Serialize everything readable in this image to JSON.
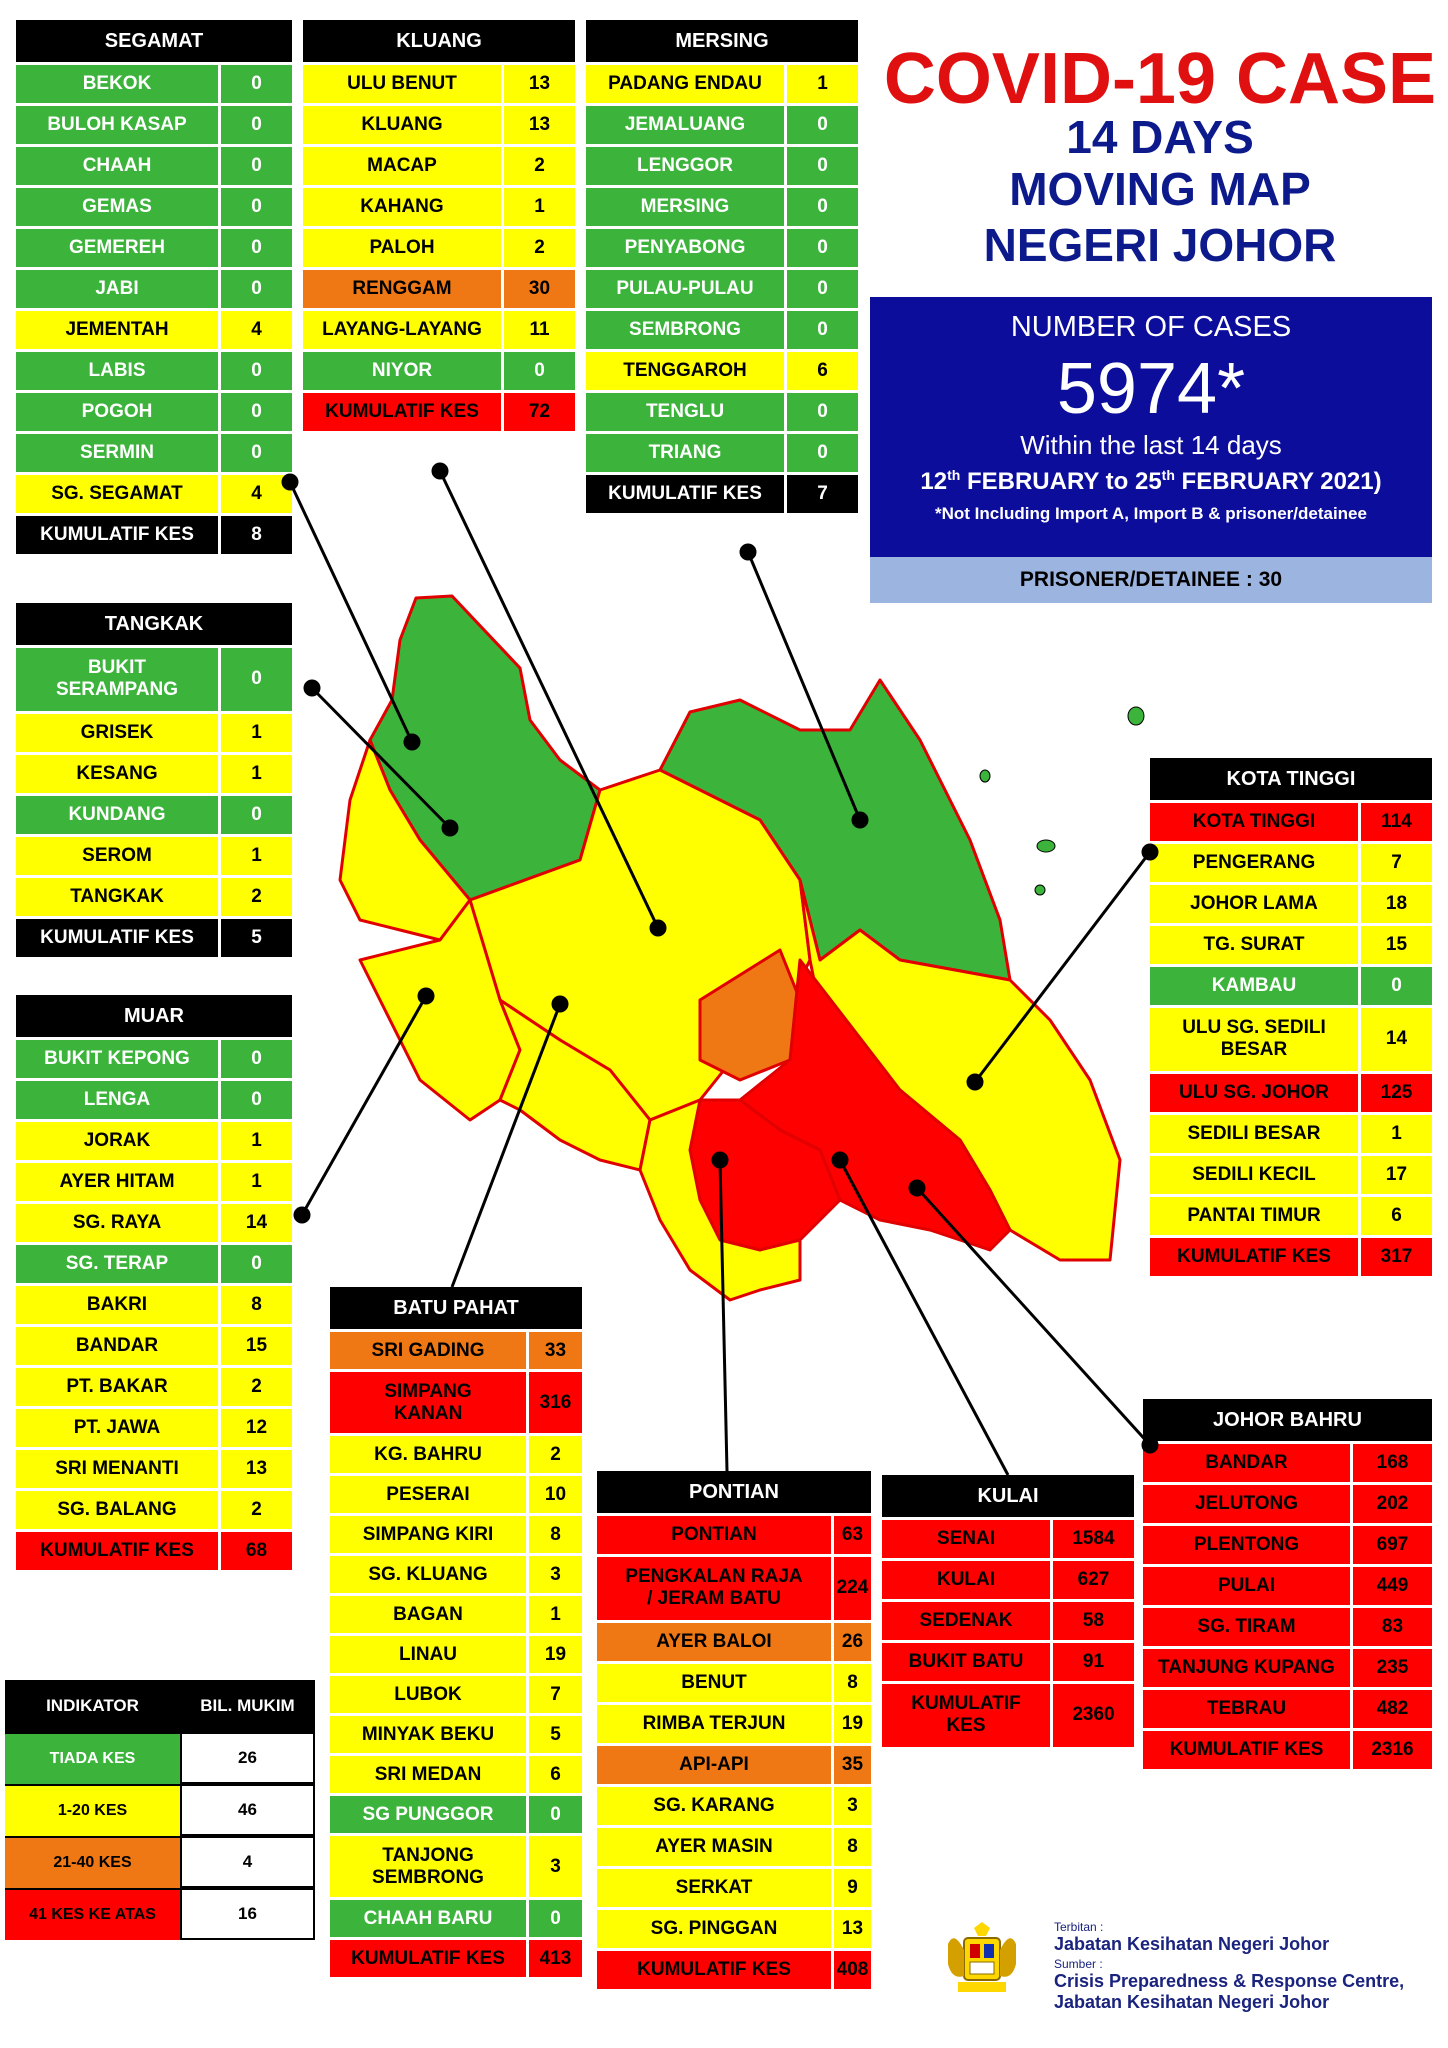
{
  "title": {
    "line1": "COVID-19 CASE",
    "line2": "14 DAYS",
    "line3": "MOVING MAP",
    "line4": "NEGERI JOHOR"
  },
  "summary": {
    "label": "NUMBER OF CASES",
    "total": "5974*",
    "within": "Within the last 14 days",
    "range_pre1": "12",
    "range_sup1": "th",
    "range_mid": " FEBRUARY to 25",
    "range_sup2": "th",
    "range_post": " FEBRUARY 2021)",
    "note": "*Not Including Import A, Import B & prisoner/detainee",
    "prisoner": "PRISONER/DETAINEE : 30"
  },
  "colors": {
    "green": "#3cb43c",
    "yellow": "#ffff00",
    "orange": "#f07814",
    "red": "#ff0000",
    "navy": "#0d0d9c",
    "title_red": "#e01010",
    "title_navy": "#0d1a8c"
  },
  "districts": {
    "segamat": {
      "name": "SEGAMAT",
      "rows": [
        {
          "n": "BEKOK",
          "v": "0",
          "c": "g"
        },
        {
          "n": "BULOH KASAP",
          "v": "0",
          "c": "g"
        },
        {
          "n": "CHAAH",
          "v": "0",
          "c": "g"
        },
        {
          "n": "GEMAS",
          "v": "0",
          "c": "g"
        },
        {
          "n": "GEMEREH",
          "v": "0",
          "c": "g"
        },
        {
          "n": "JABI",
          "v": "0",
          "c": "g"
        },
        {
          "n": "JEMENTAH",
          "v": "4",
          "c": "y"
        },
        {
          "n": "LABIS",
          "v": "0",
          "c": "g"
        },
        {
          "n": "POGOH",
          "v": "0",
          "c": "g"
        },
        {
          "n": "SERMIN",
          "v": "0",
          "c": "g"
        },
        {
          "n": "SG. SEGAMAT",
          "v": "4",
          "c": "y"
        },
        {
          "n": "KUMULATIF KES",
          "v": "8",
          "c": "k"
        }
      ]
    },
    "kluang": {
      "name": "KLUANG",
      "rows": [
        {
          "n": "ULU BENUT",
          "v": "13",
          "c": "y"
        },
        {
          "n": "KLUANG",
          "v": "13",
          "c": "y"
        },
        {
          "n": "MACAP",
          "v": "2",
          "c": "y"
        },
        {
          "n": "KAHANG",
          "v": "1",
          "c": "y"
        },
        {
          "n": "PALOH",
          "v": "2",
          "c": "y"
        },
        {
          "n": "RENGGAM",
          "v": "30",
          "c": "o"
        },
        {
          "n": "LAYANG-LAYANG",
          "v": "11",
          "c": "y"
        },
        {
          "n": "NIYOR",
          "v": "0",
          "c": "g"
        },
        {
          "n": "KUMULATIF KES",
          "v": "72",
          "c": "r"
        }
      ]
    },
    "mersing": {
      "name": "MERSING",
      "rows": [
        {
          "n": "PADANG ENDAU",
          "v": "1",
          "c": "y"
        },
        {
          "n": "JEMALUANG",
          "v": "0",
          "c": "g"
        },
        {
          "n": "LENGGOR",
          "v": "0",
          "c": "g"
        },
        {
          "n": "MERSING",
          "v": "0",
          "c": "g"
        },
        {
          "n": "PENYABONG",
          "v": "0",
          "c": "g"
        },
        {
          "n": "PULAU-PULAU",
          "v": "0",
          "c": "g"
        },
        {
          "n": "SEMBRONG",
          "v": "0",
          "c": "g"
        },
        {
          "n": "TENGGAROH",
          "v": "6",
          "c": "y"
        },
        {
          "n": "TENGLU",
          "v": "0",
          "c": "g"
        },
        {
          "n": "TRIANG",
          "v": "0",
          "c": "g"
        },
        {
          "n": "KUMULATIF KES",
          "v": "7",
          "c": "k"
        }
      ]
    },
    "tangkak": {
      "name": "TANGKAK",
      "rows": [
        {
          "n": "BUKIT\nSERAMPANG",
          "v": "0",
          "c": "g",
          "tall": true
        },
        {
          "n": "GRISEK",
          "v": "1",
          "c": "y"
        },
        {
          "n": "KESANG",
          "v": "1",
          "c": "y"
        },
        {
          "n": "KUNDANG",
          "v": "0",
          "c": "g"
        },
        {
          "n": "SEROM",
          "v": "1",
          "c": "y"
        },
        {
          "n": "TANGKAK",
          "v": "2",
          "c": "y"
        },
        {
          "n": "KUMULATIF KES",
          "v": "5",
          "c": "k"
        }
      ]
    },
    "muar": {
      "name": "MUAR",
      "rows": [
        {
          "n": "BUKIT KEPONG",
          "v": "0",
          "c": "g"
        },
        {
          "n": "LENGA",
          "v": "0",
          "c": "g"
        },
        {
          "n": "JORAK",
          "v": "1",
          "c": "y"
        },
        {
          "n": "AYER HITAM",
          "v": "1",
          "c": "y"
        },
        {
          "n": "SG. RAYA",
          "v": "14",
          "c": "y"
        },
        {
          "n": "SG. TERAP",
          "v": "0",
          "c": "g"
        },
        {
          "n": "BAKRI",
          "v": "8",
          "c": "y"
        },
        {
          "n": "BANDAR",
          "v": "15",
          "c": "y"
        },
        {
          "n": "PT. BAKAR",
          "v": "2",
          "c": "y"
        },
        {
          "n": "PT. JAWA",
          "v": "12",
          "c": "y"
        },
        {
          "n": "SRI MENANTI",
          "v": "13",
          "c": "y"
        },
        {
          "n": "SG. BALANG",
          "v": "2",
          "c": "y"
        },
        {
          "n": "KUMULATIF KES",
          "v": "68",
          "c": "r"
        }
      ]
    },
    "kota_tinggi": {
      "name": "KOTA TINGGI",
      "rows": [
        {
          "n": "KOTA TINGGI",
          "v": "114",
          "c": "r"
        },
        {
          "n": "PENGERANG",
          "v": "7",
          "c": "y"
        },
        {
          "n": "JOHOR LAMA",
          "v": "18",
          "c": "y"
        },
        {
          "n": "TG. SURAT",
          "v": "15",
          "c": "y"
        },
        {
          "n": "KAMBAU",
          "v": "0",
          "c": "g"
        },
        {
          "n": "ULU SG. SEDILI\nBESAR",
          "v": "14",
          "c": "y",
          "tall": true
        },
        {
          "n": "ULU  SG. JOHOR",
          "v": "125",
          "c": "r"
        },
        {
          "n": "SEDILI BESAR",
          "v": "1",
          "c": "y"
        },
        {
          "n": "SEDILI KECIL",
          "v": "17",
          "c": "y"
        },
        {
          "n": "PANTAI TIMUR",
          "v": "6",
          "c": "y"
        },
        {
          "n": "KUMULATIF KES",
          "v": "317",
          "c": "r"
        }
      ]
    },
    "batu_pahat": {
      "name": "BATU PAHAT",
      "rows": [
        {
          "n": "SRI GADING",
          "v": "33",
          "c": "o"
        },
        {
          "n": "SIMPANG\nKANAN",
          "v": "316",
          "c": "r",
          "tall": true
        },
        {
          "n": "KG. BAHRU",
          "v": "2",
          "c": "y"
        },
        {
          "n": "PESERAI",
          "v": "10",
          "c": "y"
        },
        {
          "n": "SIMPANG KIRI",
          "v": "8",
          "c": "y"
        },
        {
          "n": "SG. KLUANG",
          "v": "3",
          "c": "y"
        },
        {
          "n": "BAGAN",
          "v": "1",
          "c": "y"
        },
        {
          "n": "LINAU",
          "v": "19",
          "c": "y"
        },
        {
          "n": "LUBOK",
          "v": "7",
          "c": "y"
        },
        {
          "n": "MINYAK BEKU",
          "v": "5",
          "c": "y"
        },
        {
          "n": "SRI MEDAN",
          "v": "6",
          "c": "y"
        },
        {
          "n": "SG PUNGGOR",
          "v": "0",
          "c": "g"
        },
        {
          "n": "TANJONG\nSEMBRONG",
          "v": "3",
          "c": "y",
          "tall": true
        },
        {
          "n": "CHAAH BARU",
          "v": "0",
          "c": "g"
        },
        {
          "n": "KUMULATIF KES",
          "v": "413",
          "c": "r"
        }
      ]
    },
    "pontian": {
      "name": "PONTIAN",
      "rows": [
        {
          "n": "PONTIAN",
          "v": "63",
          "c": "r"
        },
        {
          "n": "PENGKALAN RAJA\n/ JERAM BATU",
          "v": "224",
          "c": "r",
          "tall": true
        },
        {
          "n": "AYER BALOI",
          "v": "26",
          "c": "o"
        },
        {
          "n": "BENUT",
          "v": "8",
          "c": "y"
        },
        {
          "n": "RIMBA TERJUN",
          "v": "19",
          "c": "y"
        },
        {
          "n": "API-API",
          "v": "35",
          "c": "o"
        },
        {
          "n": "SG. KARANG",
          "v": "3",
          "c": "y"
        },
        {
          "n": "AYER MASIN",
          "v": "8",
          "c": "y"
        },
        {
          "n": "SERKAT",
          "v": "9",
          "c": "y"
        },
        {
          "n": "SG. PINGGAN",
          "v": "13",
          "c": "y"
        },
        {
          "n": "KUMULATIF KES",
          "v": "408",
          "c": "r"
        }
      ]
    },
    "kulai": {
      "name": "KULAI",
      "rows": [
        {
          "n": "SENAI",
          "v": "1584",
          "c": "r"
        },
        {
          "n": "KULAI",
          "v": "627",
          "c": "r"
        },
        {
          "n": "SEDENAK",
          "v": "58",
          "c": "r"
        },
        {
          "n": "BUKIT BATU",
          "v": "91",
          "c": "r"
        },
        {
          "n": "KUMULATIF\nKES",
          "v": "2360",
          "c": "r",
          "tall": true
        }
      ]
    },
    "johor_bahru": {
      "name": "JOHOR BAHRU",
      "rows": [
        {
          "n": "BANDAR",
          "v": "168",
          "c": "r"
        },
        {
          "n": "JELUTONG",
          "v": "202",
          "c": "r"
        },
        {
          "n": "PLENTONG",
          "v": "697",
          "c": "r"
        },
        {
          "n": "PULAI",
          "v": "449",
          "c": "r"
        },
        {
          "n": "SG. TIRAM",
          "v": "83",
          "c": "r"
        },
        {
          "n": "TANJUNG KUPANG",
          "v": "235",
          "c": "r"
        },
        {
          "n": "TEBRAU",
          "v": "482",
          "c": "r"
        },
        {
          "n": "KUMULATIF KES",
          "v": "2316",
          "c": "r"
        }
      ]
    }
  },
  "legend": {
    "h1": "INDIKATOR",
    "h2": "BIL. MUKIM",
    "rows": [
      {
        "label": "TIADA KES",
        "count": "26",
        "c": "g"
      },
      {
        "label": "1-20 KES",
        "count": "46",
        "c": "y"
      },
      {
        "label": "21-40 KES",
        "count": "4",
        "c": "o"
      },
      {
        "label": "41 KES KE ATAS",
        "count": "16",
        "c": "r"
      }
    ]
  },
  "credits": {
    "terbitan": "Terbitan :",
    "publisher": "Jabatan Kesihatan Negeri Johor",
    "sumber": "Sumber :",
    "source1": "Crisis Preparedness & Response Centre,",
    "source2": "Jabatan Kesihatan Negeri Johor"
  }
}
